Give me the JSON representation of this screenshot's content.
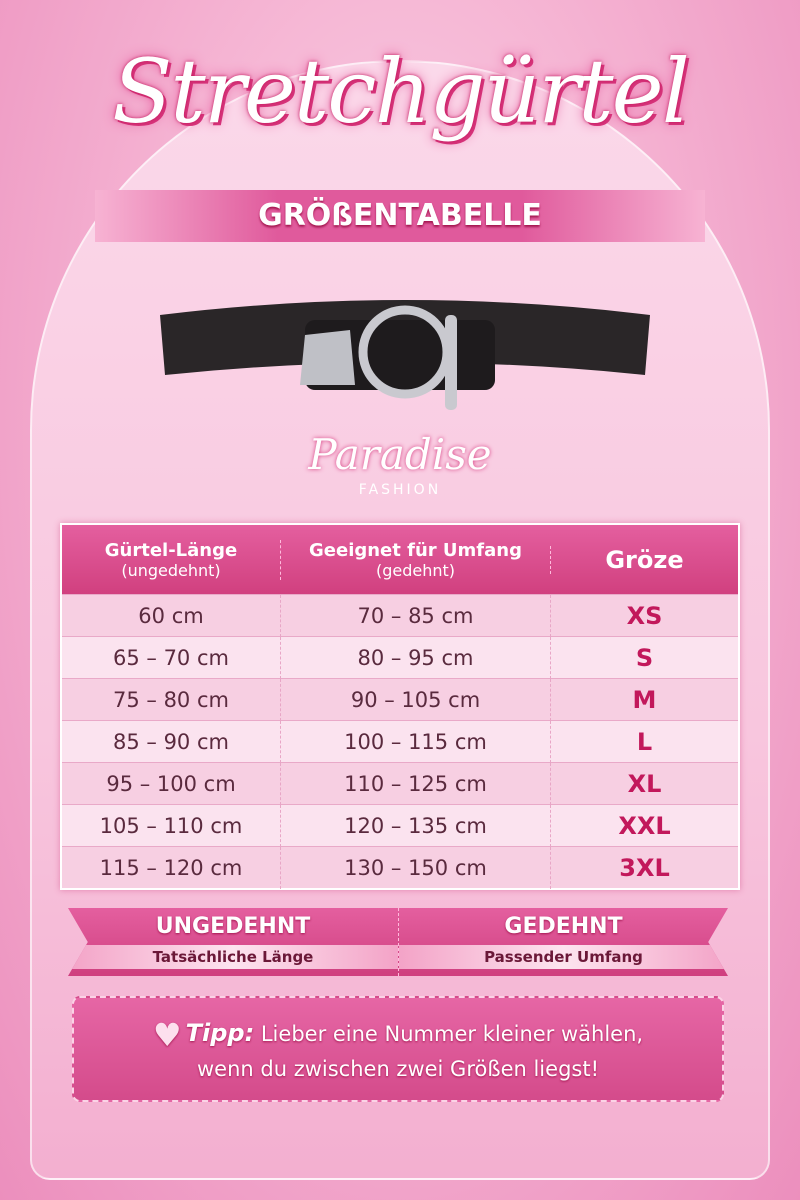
{
  "title": "Stretchgürtel",
  "subtitle": "GRÖßENTABELLE",
  "brand": {
    "name": "Paradise",
    "tagline": "FASHION"
  },
  "table": {
    "headers": [
      {
        "main": "Gürtel-Länge",
        "sub": "(ungedehnt)"
      },
      {
        "main": "Geeignet für Umfang",
        "sub": "(gedehnt)"
      },
      {
        "main": "Gröze",
        "sub": ""
      }
    ],
    "rows": [
      {
        "length": "60 cm",
        "fit": "70 – 85 cm",
        "size": "XS"
      },
      {
        "length": "65 – 70 cm",
        "fit": "80 – 95 cm",
        "size": "S"
      },
      {
        "length": "75 – 80 cm",
        "fit": "90 – 105 cm",
        "size": "M"
      },
      {
        "length": "85 – 90 cm",
        "fit": "100 – 115 cm",
        "size": "L"
      },
      {
        "length": "95 – 100 cm",
        "fit": "110 – 125 cm",
        "size": "XL"
      },
      {
        "length": "105 – 110 cm",
        "fit": "120 – 135 cm",
        "size": "XXL"
      },
      {
        "length": "115 – 120 cm",
        "fit": "130 – 150 cm",
        "size": "3XL"
      }
    ]
  },
  "legend": [
    {
      "title": "UNGEDEHNT",
      "desc": "Tatsächliche Länge"
    },
    {
      "title": "GEDEHNT",
      "desc": "Passender Umfang"
    }
  ],
  "tip": {
    "label": "Tipp:",
    "line1": "Lieber eine Nummer kleiner wählen,",
    "line2": "wenn du zwischen zwei Größen liegst!",
    "icon": "heart-icon"
  },
  "colors": {
    "accent": "#d6337a",
    "size_text": "#c2185b"
  }
}
